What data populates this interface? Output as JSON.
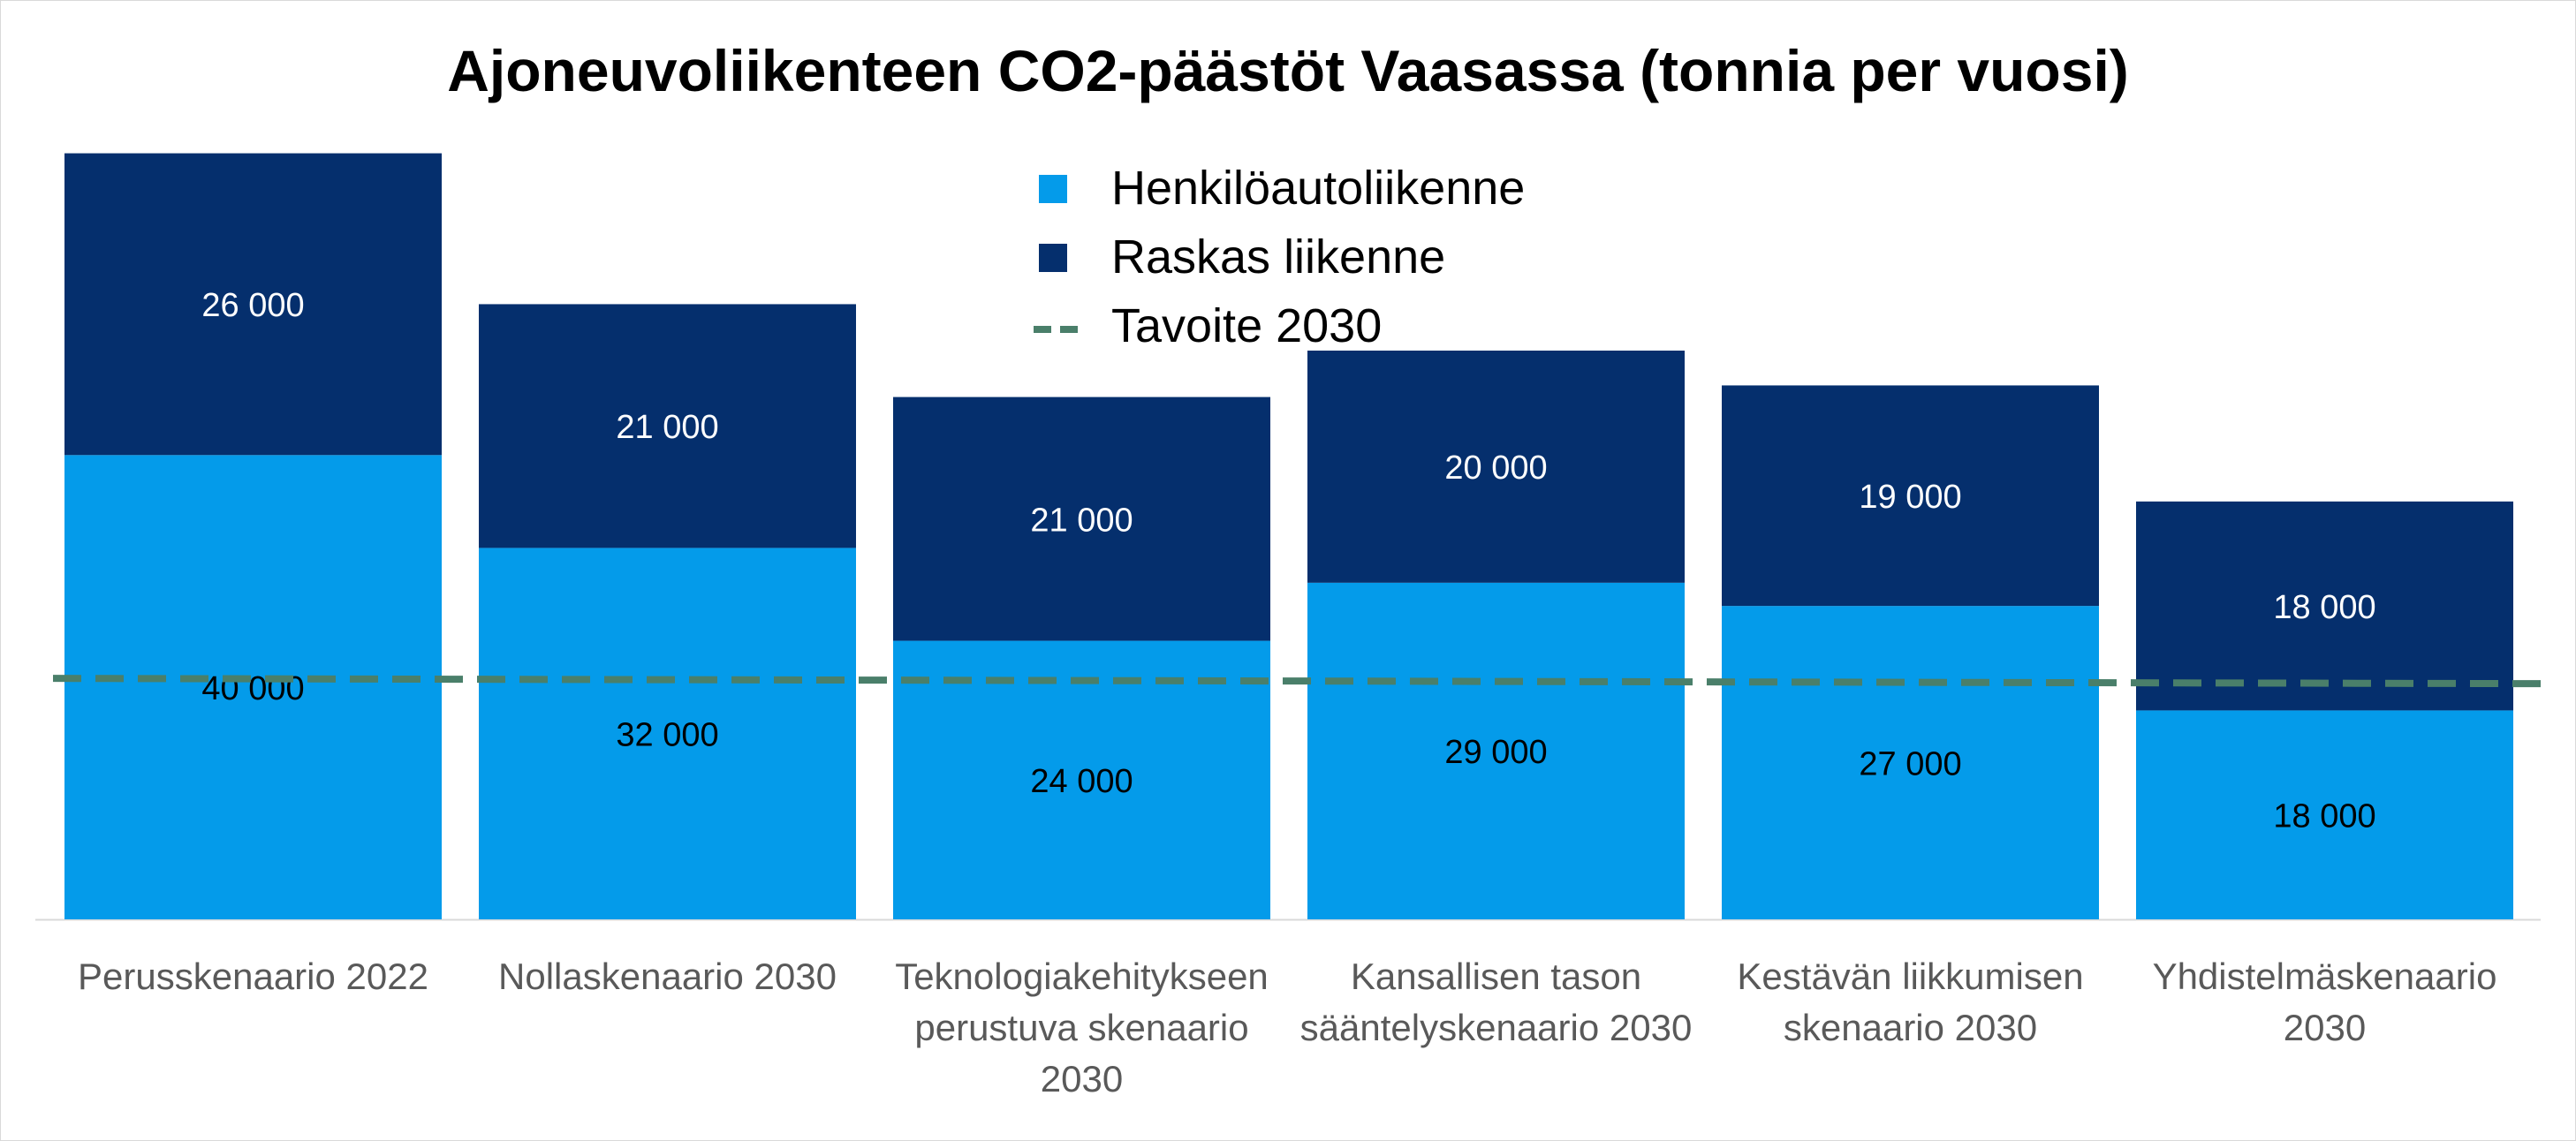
{
  "chart_data": {
    "type": "bar",
    "stacked": true,
    "title": "Ajoneuvoliikenteen CO2-päästöt Vaasassa (tonnia per vuosi)",
    "categories": [
      "Perusskenaario 2022",
      "Nollaskenaario 2030",
      "Teknologiakehitykseen perustuva skenaario 2030",
      "Kansallisen tason sääntelyskenaario 2030",
      "Kestävän liikkumisen skenaario 2030",
      "Yhdistelmäskenaario 2030"
    ],
    "series": [
      {
        "name": "Henkilöautoliikenne",
        "color": "#049BEA",
        "values": [
          40000,
          32000,
          24000,
          29000,
          27000,
          18000
        ],
        "labels": [
          "40 000",
          "32 000",
          "24 000",
          "29 000",
          "27 000",
          "18 000"
        ]
      },
      {
        "name": "Raskas liikenne",
        "color": "#052F6D",
        "values": [
          26000,
          21000,
          21000,
          20000,
          19000,
          18000
        ],
        "labels": [
          "26 000",
          "21 000",
          "21 000",
          "20 000",
          "19 000",
          "18 000"
        ]
      }
    ],
    "target": {
      "name": "Tavoite 2030",
      "value": 20000,
      "color": "#4A7F6A",
      "style": "dashed"
    },
    "ylim": [
      0,
      70000
    ],
    "grid": false,
    "legend_position": "top-center"
  }
}
